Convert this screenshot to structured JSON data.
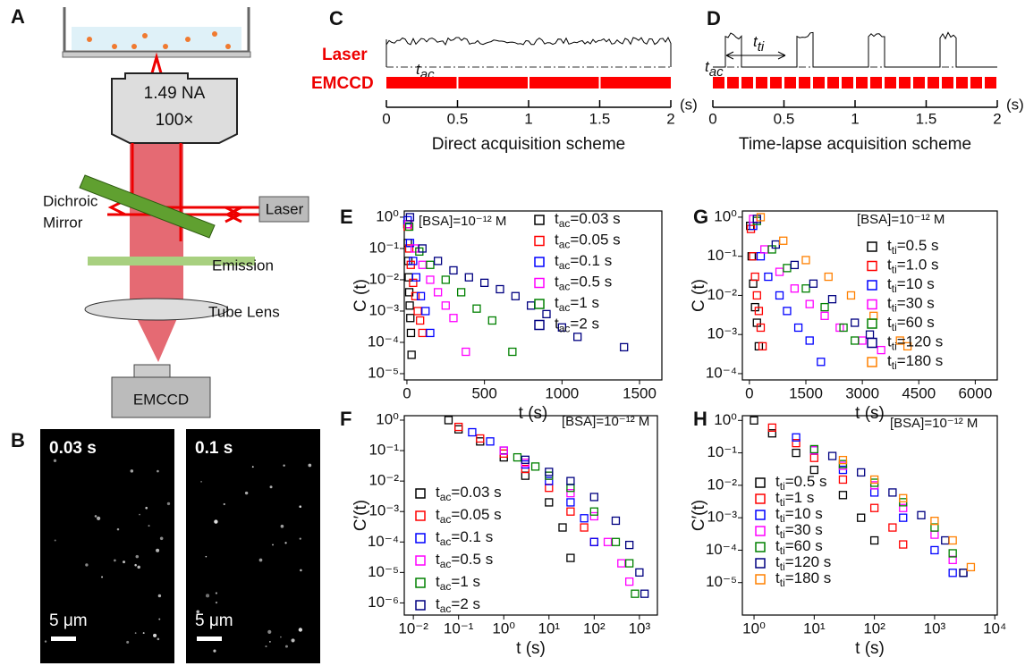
{
  "panel_a": {
    "label": "A",
    "objective_na": "1.49 NA",
    "objective_mag": "100×",
    "laser": "Laser",
    "mirror_1": "Dichroic",
    "mirror_2": "Mirror",
    "emission": "Emission",
    "tube_lens": "Tube Lens",
    "camera": "EMCCD"
  },
  "panel_b": {
    "label": "B",
    "images": [
      {
        "time": "0.03 s",
        "scale": "5 μm"
      },
      {
        "time": "0.1 s",
        "scale": "5 μm"
      }
    ]
  },
  "panel_c": {
    "label": "C",
    "laser": "Laser",
    "camera": "EMCCD",
    "t_ac": {
      "symbol": "t",
      "sub": "ac"
    },
    "ticks": [
      0,
      0.5,
      1,
      1.5,
      2
    ],
    "unit": "(s)",
    "caption": "Direct acquisition scheme"
  },
  "panel_d": {
    "label": "D",
    "t_ti": {
      "symbol": "t",
      "sub": "ti"
    },
    "t_ac": {
      "symbol": "t",
      "sub": "ac"
    },
    "ticks": [
      0,
      0.5,
      1,
      1.5,
      2
    ],
    "unit": "(s)",
    "caption": "Time-lapse acquisition scheme"
  },
  "chart_data": [
    {
      "type": "scatter",
      "panel": "E",
      "annotation": "[BSA]=10⁻¹² M",
      "xlabel": "t (s)",
      "ylabel": "C (t)",
      "log_y": true,
      "xlim": [
        -17,
        1644
      ],
      "xticks": [
        0,
        500,
        1000,
        1500
      ],
      "ylim": [
        6.3e-06,
        1.58
      ],
      "yticks": [
        {
          "value": 1,
          "label": "10⁰"
        },
        {
          "value": 0.1,
          "label": "10⁻¹"
        },
        {
          "value": 0.01,
          "label": "10⁻²"
        },
        {
          "value": 0.001,
          "label": "10⁻³"
        },
        {
          "value": 0.0001,
          "label": "10⁻⁴"
        },
        {
          "value": 1e-05,
          "label": "10⁻⁵"
        }
      ],
      "series": [
        {
          "name": "tac=0.03 s",
          "color": "#000000",
          "x": [
            3,
            6,
            9,
            12,
            15,
            18,
            22,
            26,
            30
          ],
          "values": [
            0.6,
            0.15,
            0.04,
            0.012,
            0.004,
            0.0015,
            0.0006,
            0.0002,
            4e-05
          ]
        },
        {
          "name": "tac=0.05 s",
          "color": "#ff0000",
          "x": [
            5,
            15,
            25,
            40,
            55,
            70,
            85,
            100
          ],
          "values": [
            0.5,
            0.1,
            0.03,
            0.008,
            0.003,
            0.001,
            0.0005,
            0.0002
          ]
        },
        {
          "name": "tac=0.1 s",
          "color": "#0000ff",
          "x": [
            5,
            20,
            40,
            60,
            90,
            120,
            150
          ],
          "values": [
            0.8,
            0.15,
            0.04,
            0.012,
            0.003,
            0.001,
            0.0002
          ]
        },
        {
          "name": "tac=0.5 s",
          "color": "#ff00ff",
          "x": [
            10,
            50,
            100,
            150,
            200,
            250,
            300,
            380
          ],
          "values": [
            0.6,
            0.1,
            0.03,
            0.01,
            0.004,
            0.0015,
            0.0006,
            5e-05
          ]
        },
        {
          "name": "tac=1 s",
          "color": "#008000",
          "x": [
            15,
            80,
            150,
            250,
            350,
            450,
            550,
            680
          ],
          "values": [
            0.5,
            0.08,
            0.03,
            0.01,
            0.004,
            0.0012,
            0.0005,
            5e-05
          ]
        },
        {
          "name": "tac=2 s",
          "color": "#000080",
          "x": [
            20,
            100,
            200,
            300,
            400,
            500,
            600,
            700,
            800,
            900,
            1000,
            1100,
            1400
          ],
          "values": [
            1,
            0.1,
            0.04,
            0.02,
            0.012,
            0.008,
            0.005,
            0.003,
            0.0015,
            0.0008,
            0.0003,
            0.00015,
            7e-05
          ]
        }
      ]
    },
    {
      "type": "scatter",
      "panel": "F",
      "annotation": "[BSA]=10⁻¹² M",
      "xlabel": "t (s)",
      "ylabel": "C′(t)",
      "log_x": true,
      "log_y": true,
      "xlim": [
        0.0063,
        2500
      ],
      "xticks": [
        {
          "value": 0.01,
          "label": "10⁻²"
        },
        {
          "value": 0.1,
          "label": "10⁻¹"
        },
        {
          "value": 1,
          "label": "10⁰"
        },
        {
          "value": 10,
          "label": "10¹"
        },
        {
          "value": 100,
          "label": "10²"
        },
        {
          "value": 1000,
          "label": "10³"
        }
      ],
      "ylim": [
        4e-07,
        1.4
      ],
      "yticks": [
        {
          "value": 1,
          "label": "10⁰"
        },
        {
          "value": 0.1,
          "label": "10⁻¹"
        },
        {
          "value": 0.01,
          "label": "10⁻²"
        },
        {
          "value": 0.001,
          "label": "10⁻³"
        },
        {
          "value": 0.0001,
          "label": "10⁻⁴"
        },
        {
          "value": 1e-05,
          "label": "10⁻⁵"
        },
        {
          "value": 1e-06,
          "label": "10⁻⁶"
        }
      ],
      "series": [
        {
          "name": "tac=0.03 s",
          "color": "#000000",
          "x": [
            0.06,
            0.1,
            0.3,
            1,
            3,
            10,
            20,
            30
          ],
          "values": [
            1,
            0.5,
            0.2,
            0.06,
            0.015,
            0.002,
            0.0003,
            3e-05
          ]
        },
        {
          "name": "tac=0.05 s",
          "color": "#ff0000",
          "x": [
            0.1,
            0.3,
            1,
            3,
            10,
            30,
            60,
            100
          ],
          "values": [
            0.6,
            0.25,
            0.08,
            0.025,
            0.006,
            0.001,
            0.0003,
            0.0001
          ]
        },
        {
          "name": "tac=0.1 s",
          "color": "#0000ff",
          "x": [
            0.2,
            0.5,
            1,
            3,
            10,
            30,
            60,
            100
          ],
          "values": [
            0.4,
            0.2,
            0.1,
            0.035,
            0.01,
            0.002,
            0.0006,
            0.0001
          ]
        },
        {
          "name": "tac=0.5 s",
          "color": "#ff00ff",
          "x": [
            1,
            3,
            10,
            30,
            100,
            200,
            400,
            600
          ],
          "values": [
            0.1,
            0.04,
            0.015,
            0.004,
            0.0007,
            0.0001,
            2e-05,
            5e-06
          ]
        },
        {
          "name": "tac=1 s",
          "color": "#008000",
          "x": [
            2,
            5,
            10,
            30,
            100,
            300,
            600,
            800
          ],
          "values": [
            0.06,
            0.03,
            0.015,
            0.006,
            0.001,
            0.0001,
            2e-05,
            2e-06
          ]
        },
        {
          "name": "tac=2 s",
          "color": "#000080",
          "x": [
            3,
            10,
            30,
            100,
            300,
            600,
            1000,
            1300
          ],
          "values": [
            0.05,
            0.02,
            0.01,
            0.003,
            0.0005,
            8e-05,
            1e-05,
            2e-06
          ]
        }
      ]
    },
    {
      "type": "scatter",
      "panel": "G",
      "annotation": "[BSA]=10⁻¹² M",
      "xlabel": "t (s)",
      "ylabel": "C (t)",
      "log_y": true,
      "xlim": [
        -187,
        6585
      ],
      "xticks": [
        0,
        1500,
        3000,
        4500,
        6000
      ],
      "ylim": [
        6.9e-05,
        1.44
      ],
      "yticks": [
        {
          "value": 1,
          "label": "10⁰"
        },
        {
          "value": 0.1,
          "label": "10⁻¹"
        },
        {
          "value": 0.01,
          "label": "10⁻²"
        },
        {
          "value": 0.001,
          "label": "10⁻³"
        },
        {
          "value": 0.0001,
          "label": "10⁻⁴"
        }
      ],
      "series": [
        {
          "name": "tti=0.5 s",
          "color": "#000000",
          "x": [
            20,
            60,
            100,
            150,
            200,
            250
          ],
          "values": [
            0.6,
            0.1,
            0.02,
            0.005,
            0.002,
            0.0005
          ]
        },
        {
          "name": "tti=1.0 s",
          "color": "#ff0000",
          "x": [
            40,
            100,
            150,
            200,
            250,
            300,
            350
          ],
          "values": [
            0.5,
            0.1,
            0.03,
            0.01,
            0.004,
            0.0015,
            0.0005
          ]
        },
        {
          "name": "tti=10 s",
          "color": "#0000ff",
          "x": [
            100,
            300,
            500,
            800,
            1000,
            1300,
            1600,
            1900
          ],
          "values": [
            0.6,
            0.1,
            0.03,
            0.01,
            0.004,
            0.0015,
            0.0007,
            0.0002
          ]
        },
        {
          "name": "tti=30 s",
          "color": "#ff00ff",
          "x": [
            100,
            400,
            800,
            1200,
            1600,
            2000,
            2400,
            3000,
            3500
          ],
          "values": [
            0.9,
            0.15,
            0.04,
            0.015,
            0.006,
            0.003,
            0.0015,
            0.0007,
            0.0004
          ]
        },
        {
          "name": "tti=60 s",
          "color": "#008000",
          "x": [
            200,
            600,
            1000,
            1500,
            2000,
            2500,
            2800
          ],
          "values": [
            0.8,
            0.15,
            0.05,
            0.015,
            0.005,
            0.0015,
            0.0007
          ]
        },
        {
          "name": "tti=120 s",
          "color": "#000080",
          "x": [
            200,
            700,
            1200,
            1700,
            2200,
            2800,
            3200
          ],
          "values": [
            0.9,
            0.2,
            0.06,
            0.02,
            0.008,
            0.002,
            0.001
          ]
        },
        {
          "name": "tti=180 s",
          "color": "#ff8000",
          "x": [
            300,
            900,
            1500,
            2100,
            2700,
            3300,
            4000,
            4200
          ],
          "values": [
            1,
            0.25,
            0.08,
            0.03,
            0.01,
            0.003,
            0.0007,
            0.0005
          ]
        }
      ]
    },
    {
      "type": "scatter",
      "panel": "H",
      "annotation": "[BSA]=10⁻¹² M",
      "xlabel": "t (s)",
      "ylabel": "C′(t)",
      "log_x": true,
      "log_y": true,
      "xlim": [
        0.64,
        11000
      ],
      "xticks": [
        {
          "value": 1,
          "label": "10⁰"
        },
        {
          "value": 10,
          "label": "10¹"
        },
        {
          "value": 100,
          "label": "10²"
        },
        {
          "value": 1000,
          "label": "10³"
        },
        {
          "value": 10000,
          "label": "10⁴"
        }
      ],
      "ylim": [
        1e-06,
        1.4
      ],
      "yticks": [
        {
          "value": 1,
          "label": "10⁰"
        },
        {
          "value": 0.1,
          "label": "10⁻¹"
        },
        {
          "value": 0.01,
          "label": "10⁻²"
        },
        {
          "value": 0.001,
          "label": "10⁻³"
        },
        {
          "value": 0.0001,
          "label": "10⁻⁴"
        },
        {
          "value": 1e-05,
          "label": "10⁻⁵"
        }
      ],
      "series": [
        {
          "name": "tti=0.5 s",
          "color": "#000000",
          "x": [
            1,
            2,
            5,
            10,
            30,
            60,
            100
          ],
          "values": [
            1,
            0.4,
            0.1,
            0.03,
            0.005,
            0.001,
            0.0002
          ]
        },
        {
          "name": "tti=1 s",
          "color": "#ff0000",
          "x": [
            2,
            5,
            10,
            30,
            100,
            200,
            300
          ],
          "values": [
            0.6,
            0.2,
            0.07,
            0.015,
            0.002,
            0.0005,
            0.00015
          ]
        },
        {
          "name": "tti=10 s",
          "color": "#0000ff",
          "x": [
            5,
            10,
            30,
            100,
            300,
            1000,
            2000
          ],
          "values": [
            0.3,
            0.12,
            0.03,
            0.006,
            0.001,
            0.0001,
            2e-05
          ]
        },
        {
          "name": "tti=30 s",
          "color": "#ff00ff",
          "x": [
            10,
            30,
            100,
            300,
            1000,
            2000,
            3000
          ],
          "values": [
            0.12,
            0.04,
            0.01,
            0.002,
            0.0003,
            5e-05,
            2e-05
          ]
        },
        {
          "name": "tti=60 s",
          "color": "#008000",
          "x": [
            10,
            30,
            100,
            300,
            1000,
            2000,
            3000
          ],
          "values": [
            0.13,
            0.045,
            0.012,
            0.003,
            0.0005,
            8e-05,
            2e-05
          ]
        },
        {
          "name": "tti=120 s",
          "color": "#000080",
          "x": [
            20,
            60,
            200,
            600,
            1500,
            3000
          ],
          "values": [
            0.08,
            0.025,
            0.006,
            0.0012,
            0.0002,
            2e-05
          ]
        },
        {
          "name": "tti=180 s",
          "color": "#ff8000",
          "x": [
            30,
            100,
            300,
            1000,
            2000,
            4000
          ],
          "values": [
            0.06,
            0.015,
            0.004,
            0.0008,
            0.0002,
            3e-05
          ]
        }
      ]
    }
  ]
}
